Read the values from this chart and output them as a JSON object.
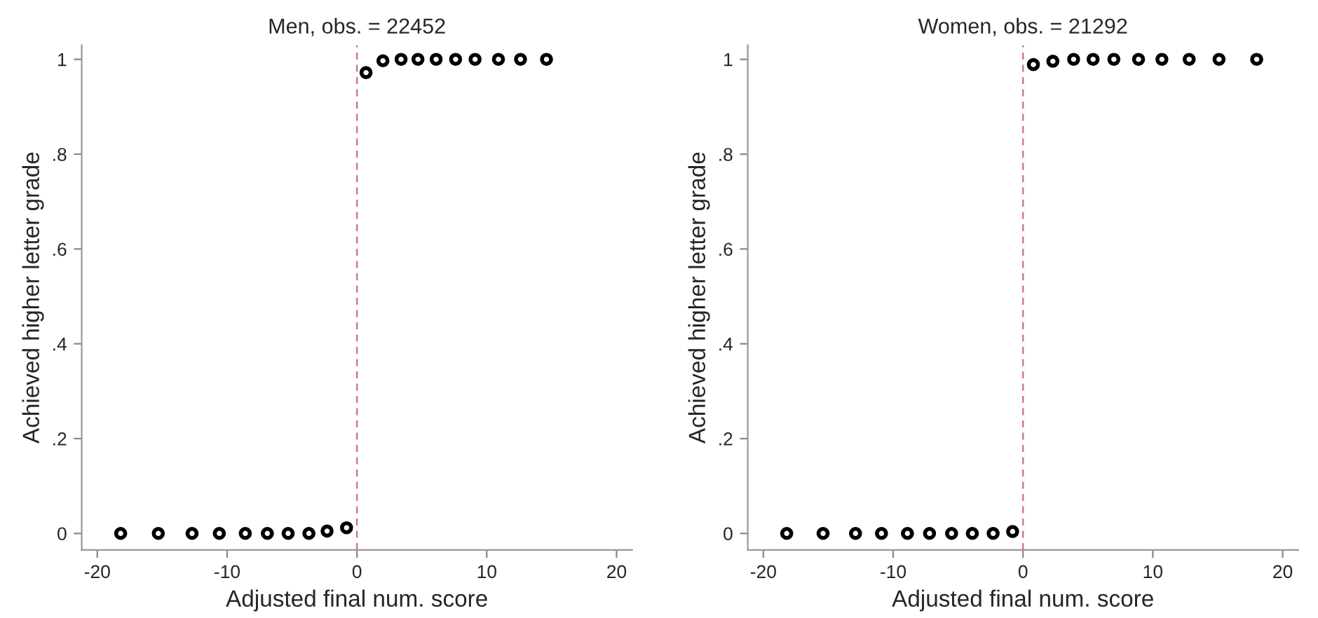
{
  "chart_data": [
    {
      "type": "scatter",
      "title": "Men, obs. = 22452",
      "xlabel": "Adjusted final num. score",
      "ylabel": "Achieved higher letter grade",
      "marker": "circle",
      "grid": false,
      "legend": false,
      "series": [
        {
          "color": "#000000",
          "x": [
            -18.2,
            -15.3,
            -12.7,
            -10.6,
            -8.6,
            -6.9,
            -5.3,
            -3.7,
            -2.3,
            -0.8,
            0.7,
            2.0,
            3.4,
            4.7,
            6.1,
            7.6,
            9.1,
            10.9,
            12.6,
            14.6
          ],
          "values": [
            0,
            0,
            0,
            0,
            0,
            0,
            0,
            0,
            0.005,
            0.012,
            0.972,
            0.997,
            1,
            1,
            1,
            1,
            1,
            1,
            1,
            1
          ]
        }
      ],
      "xlim": [
        -21.2,
        21.2
      ],
      "ylim": [
        -0.035,
        1.03
      ],
      "xticks": [
        -20,
        -10,
        0,
        10,
        20
      ],
      "yticks": [
        0,
        {
          "value": 0.2,
          "label": ".2"
        },
        {
          "value": 0.4,
          "label": ".4"
        },
        {
          "value": 0.6,
          "label": ".6"
        },
        {
          "value": 0.8,
          "label": ".8"
        },
        1
      ],
      "ref_lines": [
        {
          "axis": "x",
          "value": 0,
          "color": "#c87a9a",
          "line_style": "dashed"
        }
      ]
    },
    {
      "type": "scatter",
      "title": "Women, obs. = 21292",
      "xlabel": "Adjusted final num. score",
      "ylabel": "Achieved higher letter grade",
      "marker": "circle",
      "grid": false,
      "legend": false,
      "series": [
        {
          "color": "#000000",
          "x": [
            -18.2,
            -15.4,
            -12.9,
            -10.9,
            -8.9,
            -7.2,
            -5.5,
            -3.9,
            -2.3,
            -0.8,
            0.8,
            2.3,
            3.9,
            5.4,
            7.0,
            8.9,
            10.7,
            12.8,
            15.1,
            18.0
          ],
          "values": [
            0,
            0,
            0,
            0,
            0,
            0,
            0,
            0,
            0,
            0.004,
            0.989,
            0.996,
            1,
            1,
            1,
            1,
            1,
            1,
            1,
            1
          ]
        }
      ],
      "xlim": [
        -21.2,
        21.2
      ],
      "ylim": [
        -0.035,
        1.03
      ],
      "xticks": [
        -20,
        -10,
        0,
        10,
        20
      ],
      "yticks": [
        0,
        {
          "value": 0.2,
          "label": ".2"
        },
        {
          "value": 0.4,
          "label": ".4"
        },
        {
          "value": 0.6,
          "label": ".6"
        },
        {
          "value": 0.8,
          "label": ".8"
        },
        1
      ],
      "ref_lines": [
        {
          "axis": "x",
          "value": 0,
          "color": "#c87a9a",
          "line_style": "dashed"
        }
      ]
    }
  ]
}
